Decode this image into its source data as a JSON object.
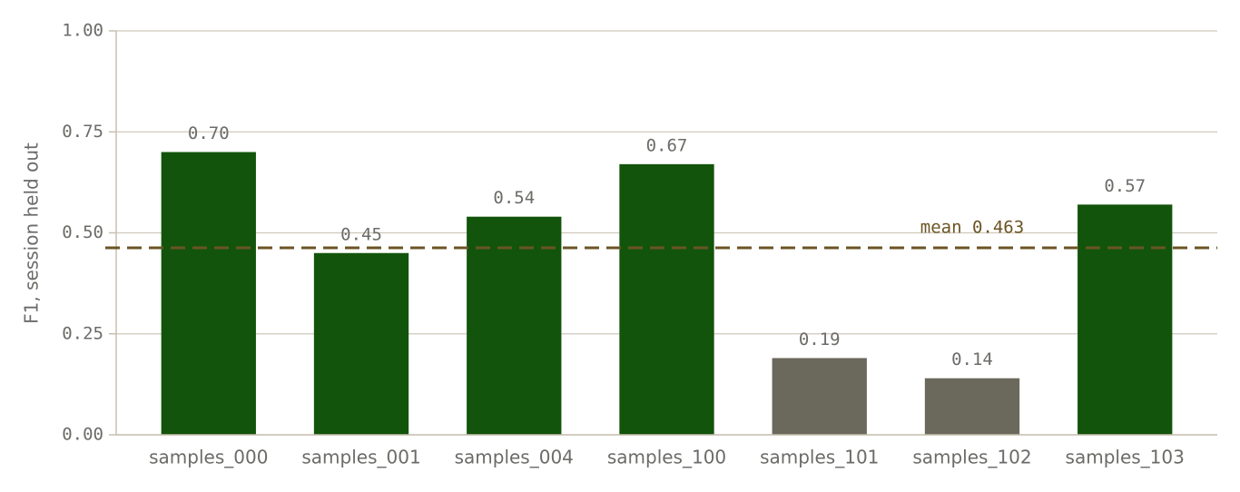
{
  "chart_data": {
    "type": "bar",
    "ylabel": "F1, session held out",
    "categories": [
      "samples_000",
      "samples_001",
      "samples_004",
      "samples_100",
      "samples_101",
      "samples_102",
      "samples_103"
    ],
    "values": [
      0.7,
      0.45,
      0.54,
      0.67,
      0.19,
      0.14,
      0.57
    ],
    "value_labels": [
      "0.70",
      "0.45",
      "0.54",
      "0.67",
      "0.19",
      "0.14",
      "0.57"
    ],
    "colors": [
      "#12540b",
      "#12540b",
      "#12540b",
      "#12540b",
      "#6b685c",
      "#6b685c",
      "#12540b"
    ],
    "ylim": [
      0,
      1
    ],
    "yticks": [
      {
        "value": 0,
        "label": "0.00"
      },
      {
        "value": 0.25,
        "label": "0.25"
      },
      {
        "value": 0.5,
        "label": "0.50"
      },
      {
        "value": 0.75,
        "label": "0.75"
      },
      {
        "value": 1,
        "label": "1.00"
      }
    ],
    "grid": true,
    "reference_line": {
      "value": 0.463,
      "label": "mean 0.463",
      "color": "#6b5424"
    }
  }
}
